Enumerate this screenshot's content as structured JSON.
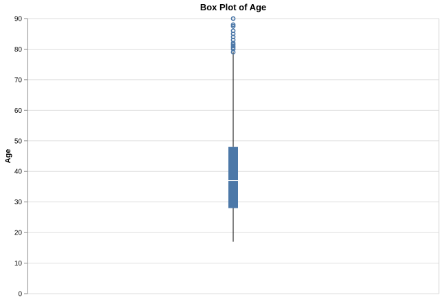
{
  "chart_data": {
    "type": "boxplot",
    "title": "Box Plot of Age",
    "xlabel": "",
    "ylabel": "Age",
    "ylim": [
      0,
      90
    ],
    "y_ticks": [
      0,
      10,
      20,
      30,
      40,
      50,
      60,
      70,
      80,
      90
    ],
    "grid": true,
    "legend": "none",
    "series": [
      {
        "min": 17,
        "q1": 28,
        "median": 37,
        "q3": 48,
        "max": 79,
        "outliers": [
          79,
          80,
          80.5,
          81,
          81.5,
          82,
          83,
          84,
          85,
          86,
          87.5,
          88,
          90
        ]
      }
    ],
    "colors": {
      "box": "#4c78a8",
      "median": "#ffffff",
      "whisker": "#000000",
      "grid": "#dddddd",
      "axis": "#888888"
    }
  }
}
